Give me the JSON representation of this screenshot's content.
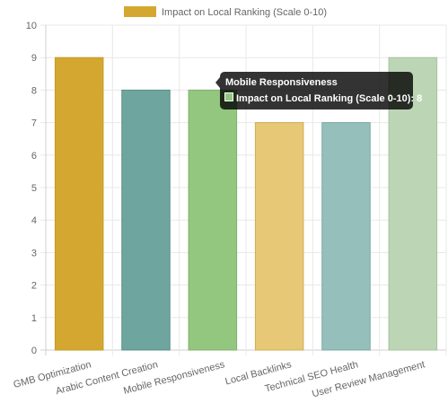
{
  "chart_data": {
    "type": "bar",
    "categories": [
      "GMB Optimization",
      "Arabic Content Creation",
      "Mobile Responsiveness",
      "Local Backlinks",
      "Technical SEO Health",
      "User Review Management"
    ],
    "series": [
      {
        "name": "Impact on Local Ranking (Scale 0-10)",
        "values": [
          9,
          8,
          8,
          7,
          7,
          9
        ]
      }
    ],
    "bar_colors": [
      "#d4a830",
      "#6ea59f",
      "#93c67e",
      "#e6c876",
      "#94bfbb",
      "#bcd6b5"
    ],
    "bar_borders": [
      "#c49a20",
      "#5a8f89",
      "#7fb06a",
      "#d0ae52",
      "#7aa9a4",
      "#a6c29e"
    ],
    "ylim": [
      0,
      10
    ],
    "y_ticks": [
      0,
      1,
      2,
      3,
      4,
      5,
      6,
      7,
      8,
      9,
      10
    ],
    "grid": true,
    "legend_position": "top-center",
    "legend_color": "#d4a830",
    "tooltip": {
      "title": "Mobile Responsiveness",
      "label": "Impact on Local Ranking (Scale 0-10): 8",
      "swatch_color": "#93c67e"
    }
  }
}
